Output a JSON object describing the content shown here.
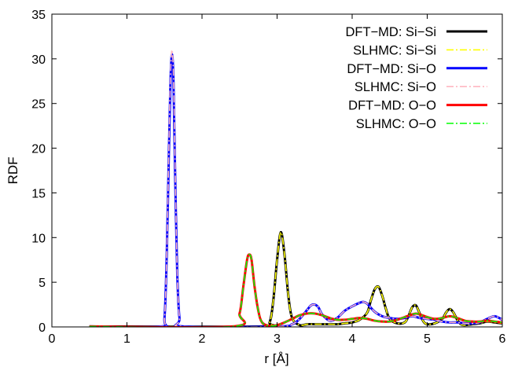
{
  "chart_data": {
    "type": "line",
    "title": "",
    "xlabel": "r [Å]",
    "ylabel": "RDF",
    "xlim": [
      0,
      6
    ],
    "ylim": [
      0,
      35
    ],
    "grid": false,
    "legend_position": "top-right",
    "xticks": [
      0,
      1,
      2,
      3,
      4,
      5,
      6
    ],
    "xtick_labels": [
      "0",
      "1",
      "2",
      "3",
      "4",
      "5",
      "6"
    ],
    "yticks": [
      0,
      5,
      10,
      15,
      20,
      25,
      30,
      35
    ],
    "ytick_labels": [
      "0",
      "5",
      "10",
      "15",
      "20",
      "25",
      "30",
      "35"
    ],
    "series": [
      {
        "name": "DFT−MD: Si−Si",
        "color": "#000000",
        "style": "solid",
        "x": [
          0.5,
          2.8,
          2.9,
          2.95,
          3.0,
          3.05,
          3.1,
          3.15,
          3.2,
          3.3,
          3.4,
          3.5,
          3.6,
          3.7,
          3.8,
          3.9,
          4.0,
          4.1,
          4.2,
          4.25,
          4.3,
          4.35,
          4.4,
          4.45,
          4.5,
          4.6,
          4.7,
          4.75,
          4.8,
          4.85,
          4.9,
          4.95,
          5.0,
          5.1,
          5.2,
          5.25,
          5.3,
          5.35,
          5.4,
          5.45,
          5.5,
          5.6,
          5.7,
          5.8,
          5.9,
          6.0
        ],
        "y": [
          0.05,
          0.05,
          0.5,
          3.0,
          7.5,
          10.6,
          8.0,
          3.5,
          1.0,
          0.2,
          0.3,
          0.3,
          0.3,
          0.3,
          0.3,
          0.4,
          0.5,
          0.8,
          1.6,
          3.0,
          4.2,
          4.5,
          3.5,
          2.0,
          0.9,
          0.4,
          0.5,
          1.2,
          2.2,
          2.4,
          1.5,
          0.6,
          0.3,
          0.4,
          0.9,
          1.6,
          2.0,
          1.6,
          0.8,
          0.3,
          0.2,
          0.3,
          0.4,
          0.6,
          0.5,
          0.4
        ]
      },
      {
        "name": "SLHMC: Si−Si",
        "color": "#ffff00",
        "style": "dashdot",
        "x": [
          0.5,
          2.8,
          2.9,
          2.95,
          3.0,
          3.05,
          3.1,
          3.15,
          3.2,
          3.3,
          3.4,
          3.5,
          3.6,
          3.7,
          3.8,
          3.9,
          4.0,
          4.1,
          4.2,
          4.25,
          4.3,
          4.35,
          4.4,
          4.45,
          4.5,
          4.6,
          4.7,
          4.75,
          4.8,
          4.85,
          4.9,
          4.95,
          5.0,
          5.1,
          5.2,
          5.25,
          5.3,
          5.35,
          5.4,
          5.45,
          5.5,
          5.6,
          5.7,
          5.8,
          5.9,
          6.0
        ],
        "y": [
          0.05,
          0.05,
          0.5,
          3.0,
          7.5,
          10.6,
          8.0,
          3.5,
          1.0,
          0.2,
          0.3,
          0.3,
          0.3,
          0.3,
          0.3,
          0.4,
          0.5,
          0.8,
          1.6,
          3.0,
          4.2,
          4.5,
          3.5,
          2.0,
          0.9,
          0.4,
          0.5,
          1.2,
          2.2,
          2.4,
          1.5,
          0.6,
          0.3,
          0.4,
          0.9,
          1.6,
          2.0,
          1.6,
          0.8,
          0.3,
          0.2,
          0.3,
          0.4,
          0.6,
          0.5,
          0.4
        ]
      },
      {
        "name": "DFT−MD: Si−O",
        "color": "#0000ff",
        "style": "solid",
        "x": [
          0.5,
          1.45,
          1.5,
          1.53,
          1.56,
          1.58,
          1.6,
          1.62,
          1.64,
          1.67,
          1.7,
          1.75,
          3.0,
          3.2,
          3.3,
          3.4,
          3.45,
          3.5,
          3.55,
          3.6,
          3.7,
          3.8,
          3.9,
          4.0,
          4.1,
          4.15,
          4.2,
          4.3,
          4.4,
          4.5,
          4.6,
          4.7,
          4.8,
          4.9,
          5.0,
          5.1,
          5.2,
          5.3,
          5.4,
          5.5,
          5.6,
          5.7,
          5.8,
          5.9,
          6.0
        ],
        "y": [
          0.05,
          0.05,
          1.0,
          8.0,
          20.0,
          27.5,
          30.5,
          27.5,
          18.0,
          6.0,
          1.0,
          0.05,
          0.05,
          0.3,
          0.9,
          1.9,
          2.4,
          2.5,
          2.2,
          1.4,
          0.7,
          1.0,
          1.8,
          2.3,
          2.7,
          2.8,
          2.6,
          1.7,
          1.2,
          1.0,
          0.9,
          1.0,
          1.2,
          1.0,
          0.9,
          0.8,
          0.6,
          0.5,
          0.5,
          0.4,
          0.4,
          0.5,
          0.9,
          1.2,
          0.8
        ]
      },
      {
        "name": "SLHMC: Si−O",
        "color": "#ffb6c1",
        "style": "dashdot",
        "x": [
          0.5,
          1.45,
          1.5,
          1.53,
          1.56,
          1.58,
          1.6,
          1.62,
          1.64,
          1.67,
          1.7,
          1.75,
          3.0,
          3.2,
          3.3,
          3.4,
          3.45,
          3.5,
          3.55,
          3.6,
          3.7,
          3.8,
          3.9,
          4.0,
          4.1,
          4.15,
          4.2,
          4.3,
          4.4,
          4.5,
          4.6,
          4.7,
          4.8,
          4.9,
          5.0,
          5.1,
          5.2,
          5.3,
          5.4,
          5.5,
          5.6,
          5.7,
          5.8,
          5.9,
          6.0
        ],
        "y": [
          0.05,
          0.05,
          1.0,
          8.0,
          20.5,
          28.0,
          31.0,
          28.0,
          18.5,
          6.0,
          1.0,
          0.05,
          0.05,
          0.3,
          0.9,
          1.9,
          2.4,
          2.5,
          2.2,
          1.4,
          0.7,
          1.0,
          1.8,
          2.3,
          2.7,
          2.8,
          2.6,
          1.7,
          1.2,
          1.0,
          0.9,
          1.0,
          1.2,
          1.0,
          0.9,
          0.8,
          0.6,
          0.5,
          0.5,
          0.4,
          0.4,
          0.5,
          0.9,
          1.2,
          0.8
        ]
      },
      {
        "name": "DFT−MD: O−O",
        "color": "#ff0000",
        "style": "solid",
        "x": [
          0.5,
          2.4,
          2.5,
          2.55,
          2.6,
          2.63,
          2.66,
          2.7,
          2.75,
          2.8,
          2.9,
          3.0,
          3.1,
          3.2,
          3.3,
          3.4,
          3.5,
          3.6,
          3.7,
          3.8,
          3.9,
          4.0,
          4.1,
          4.2,
          4.3,
          4.4,
          4.5,
          4.6,
          4.7,
          4.8,
          4.85,
          4.9,
          5.0,
          5.1,
          5.2,
          5.3,
          5.4,
          5.5,
          5.6,
          5.7,
          5.8,
          5.9,
          6.0
        ],
        "y": [
          0.05,
          0.05,
          1.5,
          4.5,
          7.5,
          8.1,
          7.5,
          4.5,
          1.8,
          0.5,
          0.1,
          0.2,
          0.5,
          0.9,
          1.3,
          1.5,
          1.5,
          1.3,
          1.0,
          0.8,
          0.8,
          0.9,
          1.0,
          0.9,
          0.7,
          0.6,
          0.6,
          0.8,
          1.1,
          1.4,
          1.5,
          1.4,
          1.1,
          0.9,
          1.0,
          1.2,
          1.0,
          0.7,
          0.6,
          0.6,
          0.7,
          0.6,
          0.5
        ]
      },
      {
        "name": "SLHMC: O−O",
        "color": "#00ff00",
        "style": "dashdot",
        "x": [
          0.5,
          2.4,
          2.5,
          2.55,
          2.6,
          2.63,
          2.66,
          2.7,
          2.75,
          2.8,
          2.9,
          3.0,
          3.1,
          3.2,
          3.3,
          3.4,
          3.5,
          3.6,
          3.7,
          3.8,
          3.9,
          4.0,
          4.1,
          4.2,
          4.3,
          4.4,
          4.5,
          4.6,
          4.7,
          4.8,
          4.85,
          4.9,
          5.0,
          5.1,
          5.2,
          5.3,
          5.4,
          5.5,
          5.6,
          5.7,
          5.8,
          5.9,
          6.0
        ],
        "y": [
          0.05,
          0.05,
          1.5,
          4.5,
          7.5,
          8.1,
          7.5,
          4.5,
          1.8,
          0.5,
          0.1,
          0.2,
          0.5,
          0.9,
          1.3,
          1.5,
          1.5,
          1.3,
          1.0,
          0.8,
          0.8,
          0.9,
          1.0,
          0.9,
          0.7,
          0.6,
          0.6,
          0.8,
          1.1,
          1.4,
          1.5,
          1.4,
          1.1,
          0.9,
          1.0,
          1.2,
          1.0,
          0.7,
          0.6,
          0.6,
          0.7,
          0.6,
          0.5
        ]
      }
    ]
  }
}
